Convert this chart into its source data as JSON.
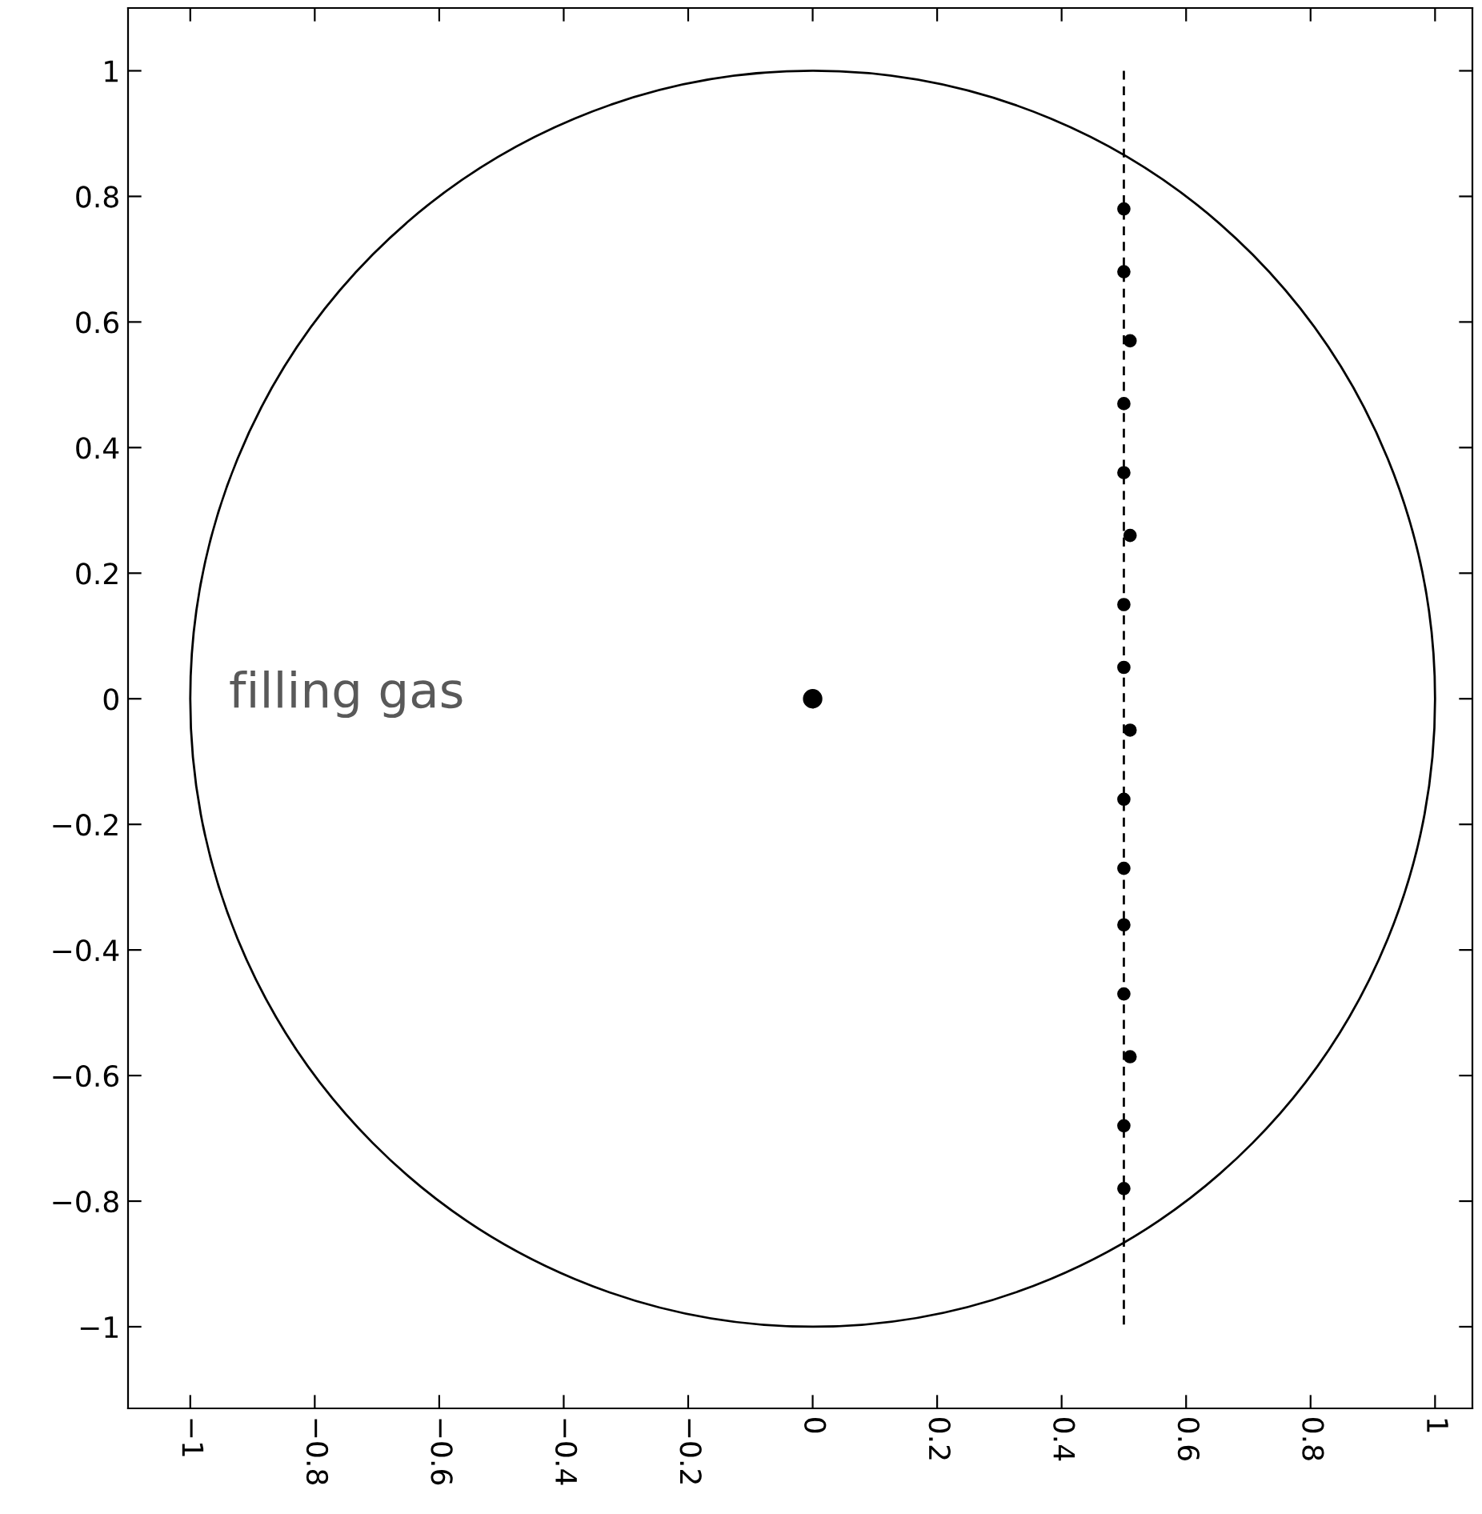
{
  "chart_data": {
    "type": "scatter",
    "xlim": [
      -1.1,
      1.06
    ],
    "ylim": [
      -1.13,
      1.1
    ],
    "xticks": [
      {
        "value": -1,
        "label": "−1"
      },
      {
        "value": -0.8,
        "label": "−0.8"
      },
      {
        "value": -0.6,
        "label": "−0.6"
      },
      {
        "value": -0.4,
        "label": "−0.4"
      },
      {
        "value": -0.2,
        "label": "−0.2"
      },
      0,
      {
        "value": 0.2,
        "label": "0.2"
      },
      {
        "value": 0.4,
        "label": "0.4"
      },
      {
        "value": 0.6,
        "label": "0.6"
      },
      {
        "value": 0.8,
        "label": "0.8"
      },
      1
    ],
    "yticks": [
      {
        "value": -1,
        "label": "−1"
      },
      {
        "value": -0.8,
        "label": "−0.8"
      },
      {
        "value": -0.6,
        "label": "−0.6"
      },
      {
        "value": -0.4,
        "label": "−0.4"
      },
      {
        "value": -0.2,
        "label": "−0.2"
      },
      0,
      {
        "value": 0.2,
        "label": "0.2"
      },
      {
        "value": 0.4,
        "label": "0.4"
      },
      {
        "value": 0.6,
        "label": "0.6"
      },
      {
        "value": 0.8,
        "label": "0.8"
      },
      1
    ],
    "grid": false,
    "legend": false,
    "marker": "circle",
    "annotations": [
      "filling gas"
    ],
    "series": [
      {
        "type": "line",
        "color": "#000000",
        "marker": "none",
        "line_style": "dashed",
        "x": [
          0.5,
          0.5
        ],
        "values": [
          1,
          -1
        ]
      },
      {
        "color": "#000000",
        "x": [
          0
        ],
        "values": [
          0
        ]
      },
      {
        "color": "#000000",
        "x": [
          0.5,
          0.5,
          0.51,
          0.5,
          0.5,
          0.51,
          0.5,
          0.5,
          0.51,
          0.5,
          0.5,
          0.5,
          0.5,
          0.51,
          0.5,
          0.5
        ],
        "values": [
          0.78,
          0.68,
          0.57,
          0.47,
          0.36,
          0.26,
          0.15,
          0.05,
          -0.05,
          -0.16,
          -0.27,
          -0.36,
          -0.47,
          -0.57,
          -0.68,
          -0.78
        ]
      }
    ]
  }
}
